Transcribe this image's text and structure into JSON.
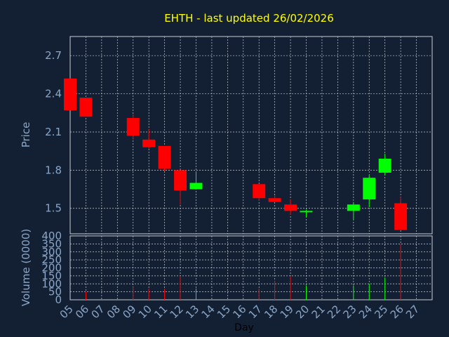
{
  "chart_data": {
    "type": "candlestick",
    "title": "EHTH - last updated 26/02/2026",
    "xlabel": "Day",
    "price_ylabel": "Price",
    "volume_ylabel": "Volume (0000)",
    "categories": [
      "05",
      "06",
      "07",
      "08",
      "09",
      "10",
      "11",
      "12",
      "13",
      "14",
      "15",
      "16",
      "17",
      "18",
      "19",
      "20",
      "21",
      "22",
      "23",
      "24",
      "25",
      "26",
      "27"
    ],
    "price_ylim": [
      1.3,
      2.85
    ],
    "price_ticks": [
      "1.5",
      "1.8",
      "2.1",
      "2.4",
      "2.7"
    ],
    "volume_ylim": [
      0,
      400
    ],
    "volume_ticks": [
      "0",
      "50",
      "100",
      "150",
      "200",
      "250",
      "300",
      "350",
      "400"
    ],
    "grid": true,
    "candles": [
      {
        "day": "05",
        "open": 2.52,
        "high": 2.52,
        "low": 2.27,
        "close": 2.27,
        "volume": 0
      },
      {
        "day": "06",
        "open": 2.37,
        "high": 2.37,
        "low": 2.22,
        "close": 2.22,
        "volume": 50
      },
      {
        "day": "09",
        "open": 2.21,
        "high": 2.24,
        "low": 2.04,
        "close": 2.07,
        "volume": 80
      },
      {
        "day": "10",
        "open": 2.04,
        "high": 2.12,
        "low": 1.97,
        "close": 1.98,
        "volume": 70
      },
      {
        "day": "11",
        "open": 1.99,
        "high": 1.99,
        "low": 1.79,
        "close": 1.81,
        "volume": 70
      },
      {
        "day": "12",
        "open": 1.8,
        "high": 1.8,
        "low": 1.53,
        "close": 1.64,
        "volume": 150
      },
      {
        "day": "13",
        "open": 1.65,
        "high": 1.78,
        "low": 1.65,
        "close": 1.7,
        "volume": 70
      },
      {
        "day": "17",
        "open": 1.69,
        "high": 1.69,
        "low": 1.56,
        "close": 1.58,
        "volume": 70
      },
      {
        "day": "18",
        "open": 1.58,
        "high": 1.6,
        "low": 1.55,
        "close": 1.55,
        "volume": 120
      },
      {
        "day": "19",
        "open": 1.53,
        "high": 1.57,
        "low": 1.45,
        "close": 1.48,
        "volume": 150
      },
      {
        "day": "20",
        "open": 1.47,
        "high": 1.49,
        "low": 1.43,
        "close": 1.48,
        "volume": 90
      },
      {
        "day": "23",
        "open": 1.48,
        "high": 1.55,
        "low": 1.41,
        "close": 1.53,
        "volume": 90
      },
      {
        "day": "24",
        "open": 1.57,
        "high": 1.76,
        "low": 1.51,
        "close": 1.74,
        "volume": 100
      },
      {
        "day": "25",
        "open": 1.78,
        "high": 1.93,
        "low": 1.76,
        "close": 1.89,
        "volume": 140
      },
      {
        "day": "26",
        "open": 1.54,
        "high": 1.59,
        "low": 1.33,
        "close": 1.33,
        "volume": 350
      }
    ]
  },
  "colors": {
    "background": "#132033",
    "plot_border": "#c8cdd6",
    "grid": "#c8cdd6",
    "title": "#ffff00",
    "axis_text": "#8aa6c8",
    "xlabel_text": "#000000",
    "up": "#00ff00",
    "down": "#ff0000"
  }
}
